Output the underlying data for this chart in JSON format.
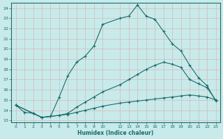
{
  "xlabel": "Humidex (Indice chaleur)",
  "bg_color": "#c8eaea",
  "grid_color": "#b0d4d4",
  "line_color": "#1a6b6b",
  "xlim": [
    -0.5,
    23.5
  ],
  "ylim": [
    12.8,
    24.5
  ],
  "xticks": [
    0,
    1,
    2,
    3,
    4,
    5,
    6,
    7,
    8,
    9,
    10,
    12,
    13,
    14,
    15,
    16,
    17,
    18,
    19,
    20,
    21,
    22,
    23
  ],
  "yticks": [
    13,
    14,
    15,
    16,
    17,
    18,
    19,
    20,
    21,
    22,
    23,
    24
  ],
  "line1_x": [
    0,
    1,
    2,
    3,
    4,
    5,
    6,
    7,
    8,
    9,
    10,
    12,
    13,
    14,
    15,
    16,
    17,
    18,
    19,
    20,
    21,
    22,
    23
  ],
  "line1_y": [
    14.5,
    13.8,
    13.7,
    13.3,
    13.4,
    15.3,
    17.4,
    18.7,
    19.3,
    20.3,
    22.4,
    23.0,
    23.2,
    24.3,
    23.2,
    22.9,
    21.7,
    20.5,
    19.8,
    18.4,
    17.2,
    16.4,
    14.9
  ],
  "line2_x": [
    0,
    2,
    3,
    4,
    5,
    6,
    7,
    8,
    9,
    10,
    12,
    13,
    14,
    15,
    16,
    17,
    18,
    19,
    20,
    21,
    22,
    23
  ],
  "line2_y": [
    14.5,
    13.7,
    13.3,
    13.4,
    13.5,
    13.7,
    14.3,
    14.8,
    15.3,
    15.8,
    16.5,
    17.0,
    17.5,
    18.0,
    18.4,
    18.7,
    18.5,
    18.2,
    17.0,
    16.6,
    16.2,
    15.0
  ],
  "line3_x": [
    0,
    2,
    3,
    4,
    5,
    6,
    7,
    8,
    9,
    10,
    12,
    13,
    14,
    15,
    16,
    17,
    18,
    19,
    20,
    21,
    22,
    23
  ],
  "line3_y": [
    14.5,
    13.7,
    13.3,
    13.4,
    13.5,
    13.6,
    13.8,
    14.0,
    14.2,
    14.4,
    14.7,
    14.8,
    14.9,
    15.0,
    15.1,
    15.2,
    15.3,
    15.4,
    15.5,
    15.4,
    15.3,
    15.0
  ]
}
